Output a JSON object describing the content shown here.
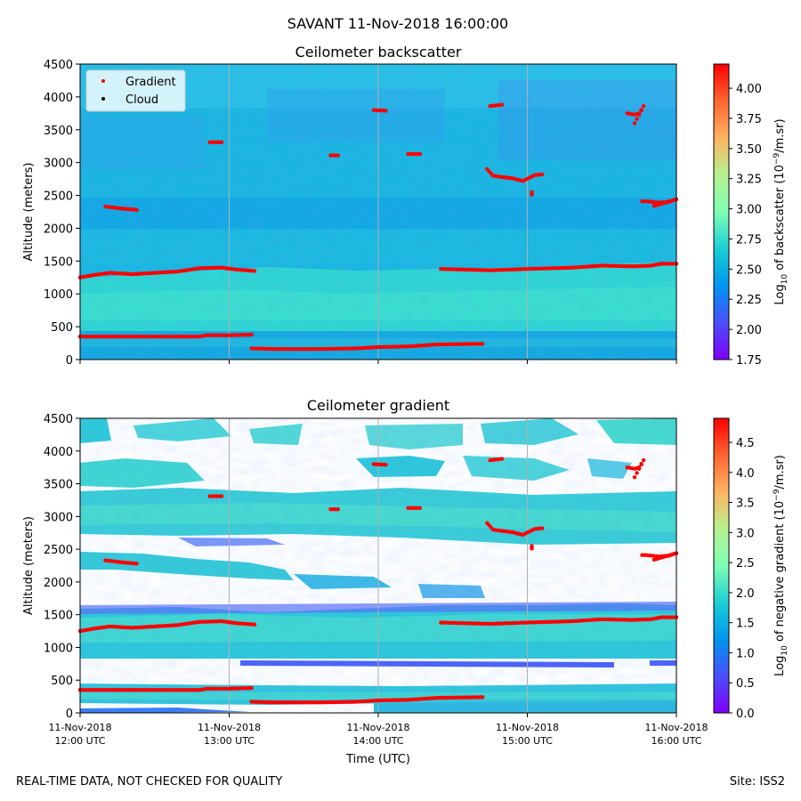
{
  "page_title": "SAVANT 11-Nov-2018 16:00:00",
  "footer": {
    "quality_note": "REAL-TIME DATA, NOT CHECKED FOR QUALITY",
    "site": "Site: ISS2"
  },
  "chart_data": [
    {
      "type": "heatmap",
      "title": "Ceilometer backscatter",
      "ylabel": "Altitude (meters)",
      "xlabel": "",
      "ylim": [
        0,
        4500
      ],
      "xlim_hours": [
        12,
        16
      ],
      "yticks": [
        0,
        500,
        1000,
        1500,
        2000,
        2500,
        3000,
        3500,
        4000,
        4500
      ],
      "colorbar": {
        "label_prefix": "Log",
        "label_sub": "10",
        "label_mid": " of backscatter (10",
        "label_sup": "−9",
        "label_suffix": "/m.sr)",
        "range": [
          1.75,
          4.2
        ],
        "ticks": [
          "1.75",
          "2.00",
          "2.25",
          "2.50",
          "2.75",
          "3.00",
          "3.25",
          "3.50",
          "3.75",
          "4.00"
        ],
        "tick_values": [
          1.75,
          2.0,
          2.25,
          2.5,
          2.75,
          3.0,
          3.25,
          3.5,
          3.75,
          4.0
        ]
      },
      "legend": {
        "placement": "top-left",
        "entries": [
          {
            "label": "Gradient",
            "color": "#ff0000"
          },
          {
            "label": "Cloud",
            "color": "#000000"
          }
        ]
      }
    },
    {
      "type": "heatmap",
      "title": "Ceilometer gradient",
      "ylabel": "Altitude (meters)",
      "xlabel": "Time (UTC)",
      "ylim": [
        0,
        4500
      ],
      "xlim_hours": [
        12,
        16
      ],
      "yticks": [
        0,
        500,
        1000,
        1500,
        2000,
        2500,
        3000,
        3500,
        4000,
        4500
      ],
      "colorbar": {
        "label_prefix": "Log",
        "label_sub": "10",
        "label_mid": " of negative gradient (10",
        "label_sup": "−9",
        "label_suffix": "/m.sr)",
        "range": [
          0.0,
          4.9
        ],
        "ticks": [
          "0.0",
          "0.5",
          "1.0",
          "1.5",
          "2.0",
          "2.5",
          "3.0",
          "3.5",
          "4.0",
          "4.5"
        ],
        "tick_values": [
          0.0,
          0.5,
          1.0,
          1.5,
          2.0,
          2.5,
          3.0,
          3.5,
          4.0,
          4.5
        ]
      }
    }
  ],
  "time_axis": {
    "ticks": [
      {
        "hour": 12,
        "date": "11-Nov-2018",
        "time": "12:00 UTC"
      },
      {
        "hour": 13,
        "date": "11-Nov-2018",
        "time": "13:00 UTC"
      },
      {
        "hour": 14,
        "date": "11-Nov-2018",
        "time": "14:00 UTC"
      },
      {
        "hour": 15,
        "date": "11-Nov-2018",
        "time": "15:00 UTC"
      },
      {
        "hour": 16,
        "date": "11-Nov-2018",
        "time": "16:00 UTC"
      }
    ]
  },
  "gradient_points": [
    {
      "name": "boundary-layer-top",
      "points": [
        [
          12.0,
          1250
        ],
        [
          12.1,
          1290
        ],
        [
          12.2,
          1320
        ],
        [
          12.35,
          1300
        ],
        [
          12.5,
          1320
        ],
        [
          12.65,
          1340
        ],
        [
          12.8,
          1390
        ],
        [
          12.95,
          1400
        ],
        [
          13.05,
          1370
        ],
        [
          13.17,
          1350
        ]
      ]
    },
    {
      "name": "surface-layer-early",
      "points": [
        [
          12.0,
          350
        ],
        [
          12.5,
          350
        ],
        [
          12.8,
          350
        ],
        [
          12.85,
          370
        ],
        [
          13.0,
          370
        ],
        [
          13.15,
          380
        ]
      ]
    },
    {
      "name": "surface-layer-late",
      "points": [
        [
          13.15,
          170
        ],
        [
          13.3,
          160
        ],
        [
          13.6,
          160
        ],
        [
          13.85,
          170
        ],
        [
          14.0,
          190
        ],
        [
          14.2,
          200
        ],
        [
          14.4,
          230
        ],
        [
          14.7,
          240
        ]
      ]
    },
    {
      "name": "residual-layer-late",
      "points": [
        [
          14.42,
          1380
        ],
        [
          14.75,
          1360
        ],
        [
          15.0,
          1380
        ],
        [
          15.3,
          1400
        ],
        [
          15.5,
          1430
        ],
        [
          15.7,
          1420
        ],
        [
          15.83,
          1430
        ],
        [
          15.9,
          1460
        ],
        [
          16.0,
          1460
        ]
      ]
    },
    {
      "name": "aerosol-2300",
      "points": [
        [
          12.17,
          2330
        ],
        [
          12.28,
          2300
        ],
        [
          12.38,
          2280
        ]
      ]
    },
    {
      "name": "cloud-3300",
      "points": [
        [
          12.87,
          3310
        ],
        [
          12.95,
          3310
        ]
      ]
    },
    {
      "name": "cloud-3100",
      "points": [
        [
          13.68,
          3110
        ],
        [
          13.73,
          3110
        ]
      ]
    },
    {
      "name": "cloud-3800",
      "points": [
        [
          13.97,
          3800
        ],
        [
          14.05,
          3790
        ]
      ]
    },
    {
      "name": "cloud-3130",
      "points": [
        [
          14.2,
          3130
        ],
        [
          14.28,
          3130
        ]
      ]
    },
    {
      "name": "layer-2800",
      "points": [
        [
          14.73,
          2900
        ],
        [
          14.77,
          2800
        ],
        [
          14.83,
          2780
        ],
        [
          14.9,
          2760
        ],
        [
          14.97,
          2720
        ],
        [
          15.05,
          2810
        ],
        [
          15.1,
          2820
        ]
      ]
    },
    {
      "name": "cloud-3870",
      "points": [
        [
          14.75,
          3860
        ],
        [
          14.83,
          3880
        ]
      ]
    },
    {
      "name": "cloud-2520",
      "points": [
        [
          15.03,
          2550
        ],
        [
          15.03,
          2510
        ]
      ]
    },
    {
      "name": "cloud-3750",
      "points": [
        [
          15.67,
          3750
        ],
        [
          15.72,
          3730
        ],
        [
          15.75,
          3750
        ],
        [
          15.78,
          3860
        ],
        [
          15.72,
          3600
        ]
      ]
    },
    {
      "name": "layer-2400",
      "points": [
        [
          15.77,
          2410
        ],
        [
          15.8,
          2410
        ],
        [
          15.88,
          2390
        ],
        [
          15.95,
          2400
        ],
        [
          16.0,
          2440
        ],
        [
          15.85,
          2340
        ]
      ]
    }
  ],
  "cloud_points": []
}
